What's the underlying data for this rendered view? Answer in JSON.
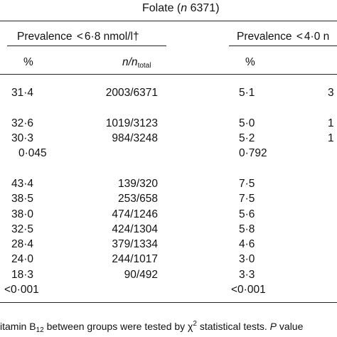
{
  "header": {
    "group_title": "Folate",
    "group_n_italic": "n",
    "group_n_value": " 6371",
    "prev_a_label": "Prevalence",
    "prev_a_threshold": "6·8 nmol/l†",
    "prev_b_label": "Prevalence",
    "prev_b_threshold": "4·0 n",
    "col_pct_a": "%",
    "col_ratio_main": "n",
    "col_ratio_sub_prefix": "/n",
    "col_ratio_sub": "total",
    "col_pct_b": "%",
    "lt_symbol": "<"
  },
  "rows": [
    {
      "pct": "31·4",
      "ratio": "2003/6371",
      "pct_b": "5·1",
      "extra": "3"
    },
    {
      "pct": "32·6",
      "ratio": "1019/3123",
      "pct_b": "5·0",
      "extra": "1"
    },
    {
      "pct": "30·3",
      "ratio": "984/3248",
      "pct_b": "5·2",
      "extra": "1"
    },
    {
      "pct": "0·045",
      "ratio": "",
      "pct_b": "0·792",
      "extra": ""
    },
    {
      "pct": "43·4",
      "ratio": "139/320",
      "pct_b": "7·5",
      "extra": ""
    },
    {
      "pct": "38·5",
      "ratio": "253/658",
      "pct_b": "7·5",
      "extra": ""
    },
    {
      "pct": "38·0",
      "ratio": "474/1246",
      "pct_b": "5·6",
      "extra": ""
    },
    {
      "pct": "32·5",
      "ratio": "424/1304",
      "pct_b": "5·8",
      "extra": ""
    },
    {
      "pct": "28·4",
      "ratio": "379/1334",
      "pct_b": "4·6",
      "extra": ""
    },
    {
      "pct": "24·0",
      "ratio": "244/1017",
      "pct_b": "3·0",
      "extra": ""
    },
    {
      "pct": "18·3",
      "ratio": "90/492",
      "pct_b": "3·3",
      "extra": ""
    },
    {
      "pct": "<0·001",
      "ratio": "",
      "pct_b": "<0·001",
      "extra": ""
    }
  ],
  "footnote": {
    "text_a": "itamin B",
    "text_b": "12",
    "text_c": " between groups were tested by χ",
    "text_d": "2",
    "text_e": " statistical tests. ",
    "text_f": "P",
    "text_g": " value"
  }
}
